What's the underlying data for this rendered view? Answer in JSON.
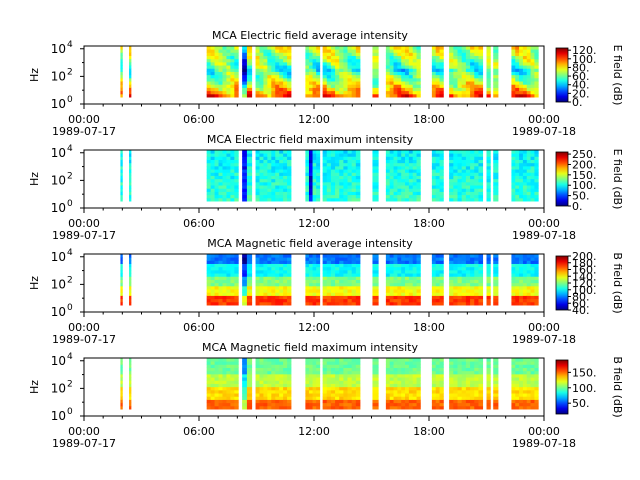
{
  "chart_data": [
    {
      "type": "heatmap",
      "title": "MCA  Electric field average intensity",
      "ylabel": "Hz",
      "colorbar_label": "E field (dB)",
      "colorbar_ticks": [
        "0.",
        "20.",
        "40.",
        "60.",
        "80.",
        "100.",
        "120."
      ],
      "colorbar_range": [
        0,
        125
      ],
      "style": "avg_e"
    },
    {
      "type": "heatmap",
      "title": "MCA  Electric field maximum intensity",
      "ylabel": "Hz",
      "colorbar_label": "E field (dB)",
      "colorbar_ticks": [
        "0.",
        "50.",
        "100.",
        "150.",
        "200.",
        "250."
      ],
      "colorbar_range": [
        0,
        260
      ],
      "style": "max_e"
    },
    {
      "type": "heatmap",
      "title": "MCA  Magnetic field average intensity",
      "ylabel": "Hz",
      "colorbar_label": "B field (dB)",
      "colorbar_ticks": [
        "40.",
        "60.",
        "80.",
        "100.",
        "120.",
        "140.",
        "160.",
        "180.",
        "200."
      ],
      "colorbar_range": [
        40,
        200
      ],
      "style": "avg_b"
    },
    {
      "type": "heatmap",
      "title": "MCA  Magnetic field maximum intensity",
      "ylabel": "Hz",
      "colorbar_label": "B field (dB)",
      "colorbar_ticks": [
        "50.",
        "100.",
        "150."
      ],
      "colorbar_range": [
        15,
        190
      ],
      "style": "max_b"
    }
  ],
  "shared": {
    "x_range_hours": [
      0,
      24
    ],
    "x_ticks": [
      {
        "hour": 0,
        "time": "00:00",
        "date": "1989-07-17"
      },
      {
        "hour": 6,
        "time": "06:00",
        "date": ""
      },
      {
        "hour": 12,
        "time": "12:00",
        "date": ""
      },
      {
        "hour": 18,
        "time": "18:00",
        "date": ""
      },
      {
        "hour": 24,
        "time": "00:00",
        "date": "1989-07-18"
      }
    ],
    "y_scale": "log",
    "y_range_exp": [
      0,
      4.2
    ],
    "y_ticks": [
      {
        "exp": 0,
        "label": "10",
        "sup": "0"
      },
      {
        "exp": 2,
        "label": "10",
        "sup": "2"
      },
      {
        "exp": 4,
        "label": "10",
        "sup": "4"
      }
    ],
    "data_intervals_hours": [
      [
        1.9,
        2.0
      ],
      [
        2.35,
        2.45
      ],
      [
        6.4,
        8.05
      ],
      [
        8.25,
        8.75
      ],
      [
        8.95,
        10.8
      ],
      [
        11.55,
        12.3
      ],
      [
        12.45,
        14.4
      ],
      [
        15.05,
        15.35
      ],
      [
        15.75,
        17.55
      ],
      [
        18.15,
        18.75
      ],
      [
        19.05,
        20.8
      ],
      [
        21.0,
        21.2
      ],
      [
        21.35,
        21.6
      ],
      [
        22.3,
        23.7
      ]
    ]
  }
}
